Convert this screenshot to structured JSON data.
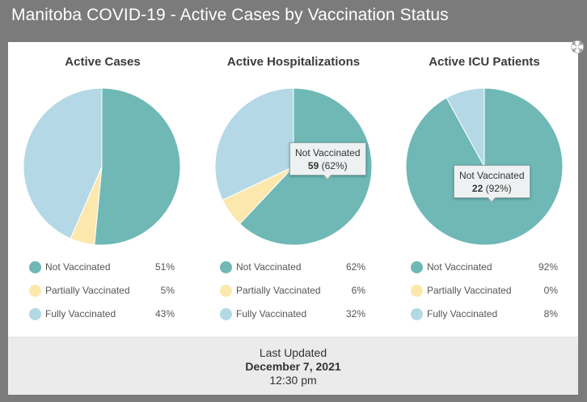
{
  "header": {
    "title": "Manitoba COVID-19 - Active Cases by Vaccination Status"
  },
  "colors": {
    "not_vaccinated": "#6fb8b6",
    "partially_vaccinated": "#fce8ad",
    "fully_vaccinated": "#b4d8e6",
    "background": "#7b7b7b"
  },
  "chart_data": [
    {
      "type": "pie",
      "title": "Active Cases",
      "categories": [
        "Not Vaccinated",
        "Partially Vaccinated",
        "Fully Vaccinated"
      ],
      "values": [
        51,
        5,
        43
      ],
      "labels": [
        "51%",
        "5%",
        "43%"
      ]
    },
    {
      "type": "pie",
      "title": "Active Hospitalizations",
      "categories": [
        "Not Vaccinated",
        "Partially Vaccinated",
        "Fully Vaccinated"
      ],
      "values": [
        62,
        6,
        32
      ],
      "labels": [
        "62%",
        "6%",
        "32%"
      ],
      "tooltip": {
        "label": "Not Vaccinated",
        "count": "59",
        "pct": "(62%)"
      }
    },
    {
      "type": "pie",
      "title": "Active ICU Patients",
      "categories": [
        "Not Vaccinated",
        "Partially Vaccinated",
        "Fully Vaccinated"
      ],
      "values": [
        92,
        0,
        8
      ],
      "labels": [
        "92%",
        "0%",
        "8%"
      ],
      "tooltip": {
        "label": "Not Vaccinated",
        "count": "22",
        "pct": "(92%)"
      }
    }
  ],
  "footer": {
    "label": "Last Updated",
    "date": "December 7, 2021",
    "time": "12:30 pm"
  },
  "icons": {
    "expand": "expand-icon"
  }
}
